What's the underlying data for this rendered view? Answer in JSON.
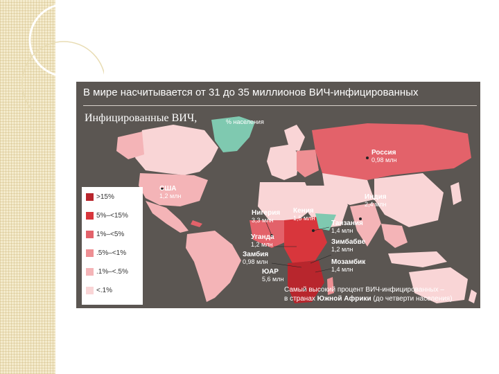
{
  "map": {
    "title": "В мире насчитывается от 31 до 35 миллионов ВИЧ-инфицированных",
    "subtitle": "Инфицированные ВИЧ,",
    "unit": "% населения",
    "colors": {
      "background": "#5b5652",
      "no_data": "#6f6a66",
      "greenland": "#7fc9b0"
    },
    "legend": [
      {
        "label": ">15%",
        "color": "#b8262d"
      },
      {
        "label": "5%–<15%",
        "color": "#d8363c"
      },
      {
        "label": "1%–<5%",
        "color": "#e3626a"
      },
      {
        "label": ".5%–<1%",
        "color": "#ee8f93"
      },
      {
        "label": ".1%–<.5%",
        "color": "#f4b4b7"
      },
      {
        "label": "<.1%",
        "color": "#f9d5d6"
      }
    ],
    "callouts": [
      {
        "country": "США",
        "value": "1,2 млн"
      },
      {
        "country": "Россия",
        "value": "0,98 млн"
      },
      {
        "country": "Индия",
        "value": "2,4 млн"
      },
      {
        "country": "Нигерия",
        "value": "3,3 млн"
      },
      {
        "country": "Кения",
        "value": "1,5 млн"
      },
      {
        "country": "Танзания",
        "value": "1,4 млн"
      },
      {
        "country": "Уганда",
        "value": "1,2 млн"
      },
      {
        "country": "Зимбабве",
        "value": "1,2 млн"
      },
      {
        "country": "Замбия",
        "value": "0,98 млн"
      },
      {
        "country": "Мозамбик",
        "value": "1,4 млн"
      },
      {
        "country": "ЮАР",
        "value": "5,6 млн"
      }
    ],
    "footnote": {
      "line1": "Самый высокий процент ВИЧ-инфицированных –",
      "line2_pre": "в странах ",
      "line2_bold": "Южной Африки",
      "line2_post": " (до четверти населения)"
    }
  }
}
